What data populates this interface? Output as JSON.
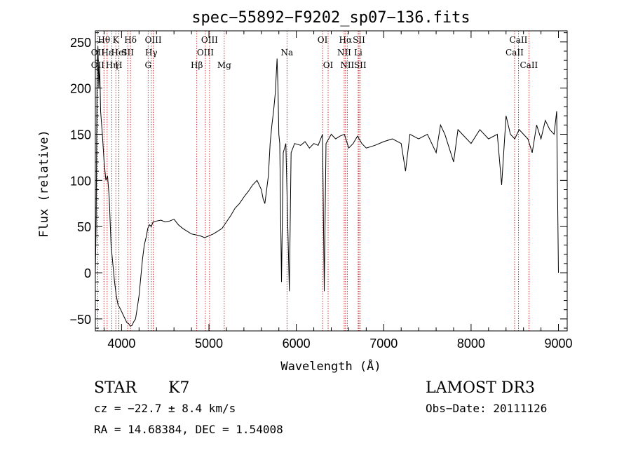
{
  "chart_data": {
    "type": "line",
    "title": "spec−55892−F9202_sp07−136.fits",
    "xlabel": "Wavelength (Å)",
    "ylabel": "Flux (relative)",
    "xlim": [
      3700,
      9100
    ],
    "ylim": [
      -63,
      262
    ],
    "xticks": [
      4000,
      5000,
      6000,
      7000,
      8000,
      9000
    ],
    "yticks": [
      -50,
      0,
      50,
      100,
      150,
      200,
      250
    ],
    "grid": false,
    "series": [
      {
        "name": "flux",
        "points": [
          [
            3700,
            0
          ],
          [
            3710,
            60
          ],
          [
            3720,
            220
          ],
          [
            3730,
            245
          ],
          [
            3740,
            200
          ],
          [
            3750,
            225
          ],
          [
            3760,
            175
          ],
          [
            3780,
            150
          ],
          [
            3800,
            120
          ],
          [
            3820,
            100
          ],
          [
            3840,
            105
          ],
          [
            3860,
            80
          ],
          [
            3880,
            30
          ],
          [
            3900,
            10
          ],
          [
            3920,
            -10
          ],
          [
            3940,
            -25
          ],
          [
            3960,
            -35
          ],
          [
            3980,
            -38
          ],
          [
            4000,
            -42
          ],
          [
            4020,
            -46
          ],
          [
            4040,
            -50
          ],
          [
            4060,
            -54
          ],
          [
            4080,
            -55
          ],
          [
            4100,
            -58
          ],
          [
            4120,
            -57
          ],
          [
            4140,
            -53
          ],
          [
            4160,
            -50
          ],
          [
            4180,
            -38
          ],
          [
            4200,
            -25
          ],
          [
            4220,
            -5
          ],
          [
            4240,
            15
          ],
          [
            4260,
            30
          ],
          [
            4280,
            38
          ],
          [
            4300,
            48
          ],
          [
            4320,
            52
          ],
          [
            4340,
            50
          ],
          [
            4360,
            55
          ],
          [
            4400,
            56
          ],
          [
            4450,
            57
          ],
          [
            4500,
            55
          ],
          [
            4550,
            56
          ],
          [
            4600,
            58
          ],
          [
            4650,
            52
          ],
          [
            4700,
            48
          ],
          [
            4750,
            45
          ],
          [
            4800,
            42
          ],
          [
            4850,
            41
          ],
          [
            4900,
            40
          ],
          [
            4950,
            38
          ],
          [
            5000,
            40
          ],
          [
            5050,
            42
          ],
          [
            5100,
            45
          ],
          [
            5150,
            48
          ],
          [
            5200,
            55
          ],
          [
            5250,
            62
          ],
          [
            5300,
            70
          ],
          [
            5350,
            75
          ],
          [
            5400,
            82
          ],
          [
            5450,
            88
          ],
          [
            5500,
            95
          ],
          [
            5550,
            100
          ],
          [
            5600,
            90
          ],
          [
            5620,
            80
          ],
          [
            5640,
            75
          ],
          [
            5660,
            90
          ],
          [
            5680,
            105
          ],
          [
            5700,
            140
          ],
          [
            5720,
            160
          ],
          [
            5740,
            175
          ],
          [
            5760,
            195
          ],
          [
            5780,
            232
          ],
          [
            5790,
            200
          ],
          [
            5800,
            150
          ],
          [
            5810,
            140
          ],
          [
            5830,
            -10
          ],
          [
            5850,
            130
          ],
          [
            5880,
            140
          ],
          [
            5920,
            -20
          ],
          [
            5940,
            130
          ],
          [
            5980,
            140
          ],
          [
            6050,
            138
          ],
          [
            6100,
            142
          ],
          [
            6150,
            135
          ],
          [
            6200,
            140
          ],
          [
            6250,
            138
          ],
          [
            6300,
            150
          ],
          [
            6320,
            -20
          ],
          [
            6340,
            140
          ],
          [
            6400,
            150
          ],
          [
            6450,
            145
          ],
          [
            6500,
            148
          ],
          [
            6550,
            150
          ],
          [
            6600,
            135
          ],
          [
            6650,
            140
          ],
          [
            6700,
            148
          ],
          [
            6750,
            140
          ],
          [
            6800,
            135
          ],
          [
            6900,
            138
          ],
          [
            7000,
            142
          ],
          [
            7100,
            145
          ],
          [
            7200,
            140
          ],
          [
            7250,
            110
          ],
          [
            7300,
            150
          ],
          [
            7400,
            145
          ],
          [
            7500,
            150
          ],
          [
            7600,
            130
          ],
          [
            7650,
            160
          ],
          [
            7700,
            150
          ],
          [
            7800,
            120
          ],
          [
            7850,
            155
          ],
          [
            7900,
            150
          ],
          [
            8000,
            140
          ],
          [
            8100,
            155
          ],
          [
            8200,
            145
          ],
          [
            8300,
            150
          ],
          [
            8350,
            95
          ],
          [
            8400,
            170
          ],
          [
            8450,
            150
          ],
          [
            8500,
            145
          ],
          [
            8550,
            155
          ],
          [
            8600,
            150
          ],
          [
            8650,
            145
          ],
          [
            8700,
            130
          ],
          [
            8750,
            160
          ],
          [
            8800,
            145
          ],
          [
            8850,
            165
          ],
          [
            8900,
            155
          ],
          [
            8950,
            150
          ],
          [
            8980,
            175
          ],
          [
            9000,
            0
          ]
        ]
      }
    ],
    "line_markers": [
      {
        "label": "Hθ",
        "wavelength": 3798,
        "row": 0
      },
      {
        "label": "OII",
        "wavelength": 3727,
        "row": 1
      },
      {
        "label": "OII",
        "wavelength": 3727,
        "row": 2
      },
      {
        "label": "Hε",
        "wavelength": 3835,
        "row": 1
      },
      {
        "label": "Hη",
        "wavelength": 3889,
        "row": 2
      },
      {
        "label": "K",
        "wavelength": 3934,
        "row": 0
      },
      {
        "label": "HeI",
        "wavelength": 3970,
        "row": 1
      },
      {
        "label": "H",
        "wavelength": 3968,
        "row": 2
      },
      {
        "label": "SII",
        "wavelength": 4070,
        "row": 1
      },
      {
        "label": "Hδ",
        "wavelength": 4102,
        "row": 0
      },
      {
        "label": "OIII",
        "wavelength": 4363,
        "row": 0
      },
      {
        "label": "Hγ",
        "wavelength": 4340,
        "row": 1
      },
      {
        "label": "G",
        "wavelength": 4304,
        "row": 2
      },
      {
        "label": "Hβ",
        "wavelength": 4861,
        "row": 2
      },
      {
        "label": "OIII",
        "wavelength": 5007,
        "row": 0
      },
      {
        "label": "OIII",
        "wavelength": 4959,
        "row": 1
      },
      {
        "label": "Mg",
        "wavelength": 5175,
        "row": 2
      },
      {
        "label": "Na",
        "wavelength": 5893,
        "row": 1
      },
      {
        "label": "OI",
        "wavelength": 6300,
        "row": 0
      },
      {
        "label": "OI",
        "wavelength": 6364,
        "row": 2
      },
      {
        "label": "Hα",
        "wavelength": 6563,
        "row": 0
      },
      {
        "label": "NII",
        "wavelength": 6548,
        "row": 1
      },
      {
        "label": "NII",
        "wavelength": 6583,
        "row": 2
      },
      {
        "label": "SII",
        "wavelength": 6717,
        "row": 0
      },
      {
        "label": "Li",
        "wavelength": 6708,
        "row": 1
      },
      {
        "label": "SII",
        "wavelength": 6731,
        "row": 2
      },
      {
        "label": "CaII",
        "wavelength": 8542,
        "row": 0
      },
      {
        "label": "CaII",
        "wavelength": 8498,
        "row": 1
      },
      {
        "label": "CaII",
        "wavelength": 8662,
        "row": 2
      }
    ]
  },
  "info": {
    "class": "STAR",
    "subclass": "K7",
    "survey": "LAMOST DR3",
    "cz": "cz = −22.7 ± 8.4 km/s",
    "obs_date": "Obs−Date: 20111126",
    "coords": "RA =  14.68384, DEC =    1.54008"
  },
  "colors": {
    "line": "#000000",
    "marker": "#c00000"
  }
}
